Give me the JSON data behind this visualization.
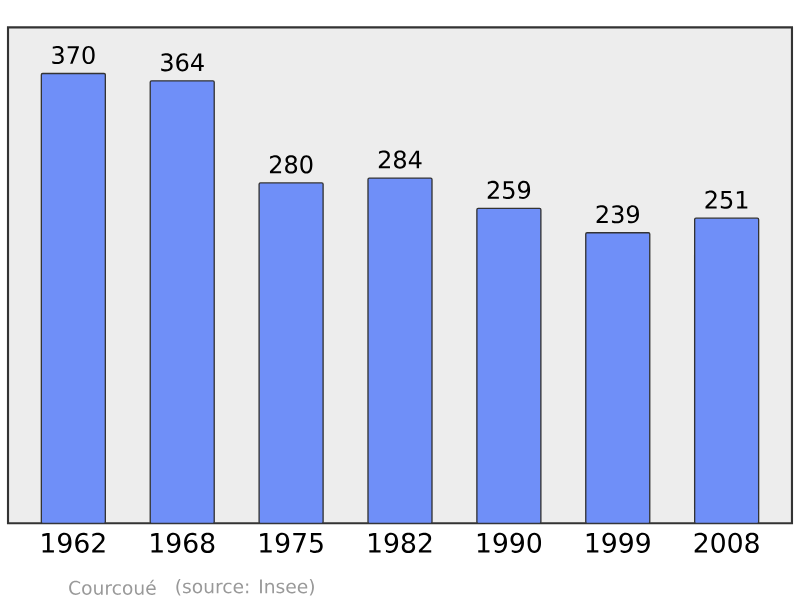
{
  "chart_data": {
    "type": "bar",
    "categories": [
      "1962",
      "1968",
      "1975",
      "1982",
      "1990",
      "1999",
      "2008"
    ],
    "values": [
      370,
      364,
      280,
      284,
      259,
      239,
      251
    ],
    "color": "#6f8ff8",
    "ylim": [
      0,
      408
    ],
    "tick_labels": "x",
    "data_labels": true,
    "grid": false,
    "annotations": [
      "Courcoué",
      "(source: Insee)"
    ]
  }
}
